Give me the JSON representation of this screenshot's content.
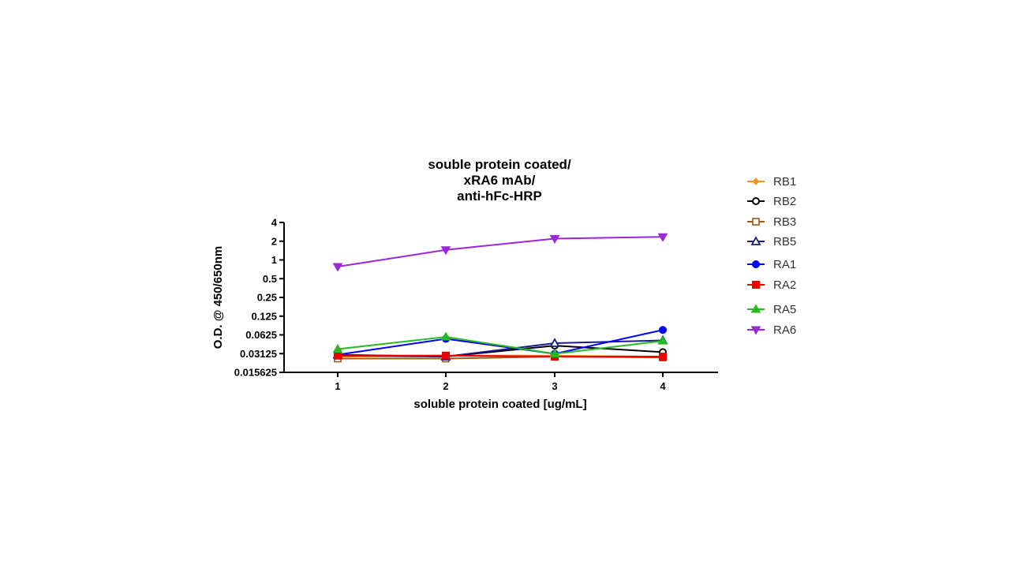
{
  "chart_data": {
    "type": "line",
    "title_lines": [
      "souble protein coated/",
      "xRA6 mAb/",
      "anti-hFc-HRP"
    ],
    "xlabel": "soluble protein coated [ug/mL]",
    "ylabel": "O.D. @ 450/650nm",
    "x": [
      1,
      2,
      3,
      4
    ],
    "x_tick_labels": [
      "1",
      "2",
      "3",
      "4"
    ],
    "y_scale": "log2",
    "ylim": [
      0.015625,
      4
    ],
    "y_ticks": [
      0.015625,
      0.03125,
      0.0625,
      0.125,
      0.25,
      0.5,
      1,
      2,
      4
    ],
    "y_tick_labels": [
      "0.015625",
      "0.03125",
      "0.0625",
      "0.125",
      "0.25",
      "0.5",
      "1",
      "2",
      "4"
    ],
    "grid": false,
    "legend_position": "right",
    "series": [
      {
        "name": "RB1",
        "color": "#F7941D",
        "marker": "diamond",
        "values": [
          0.028,
          0.029,
          0.029,
          0.028
        ]
      },
      {
        "name": "RB2",
        "color": "#000000",
        "marker": "circle-open",
        "values": [
          0.029,
          0.028,
          0.042,
          0.033
        ]
      },
      {
        "name": "RB3",
        "color": "#9E5A1E",
        "marker": "square-open",
        "values": [
          0.026,
          0.026,
          0.028,
          0.027
        ]
      },
      {
        "name": "RB5",
        "color": "#1A1A8C",
        "marker": "triangle-open",
        "values": [
          0.03,
          0.028,
          0.046,
          0.051
        ]
      },
      {
        "name": "RA1",
        "color": "#0000FF",
        "marker": "circle",
        "values": [
          0.03,
          0.054,
          0.031,
          0.075
        ]
      },
      {
        "name": "RA2",
        "color": "#EE0000",
        "marker": "square",
        "values": [
          0.029,
          0.029,
          0.028,
          0.028
        ]
      },
      {
        "name": "RA5",
        "color": "#22BB22",
        "marker": "triangle-up",
        "values": [
          0.037,
          0.058,
          0.031,
          0.05
        ]
      },
      {
        "name": "RA6",
        "color": "#9B27D8",
        "marker": "triangle-down",
        "values": [
          0.78,
          1.45,
          2.2,
          2.35
        ]
      }
    ]
  }
}
